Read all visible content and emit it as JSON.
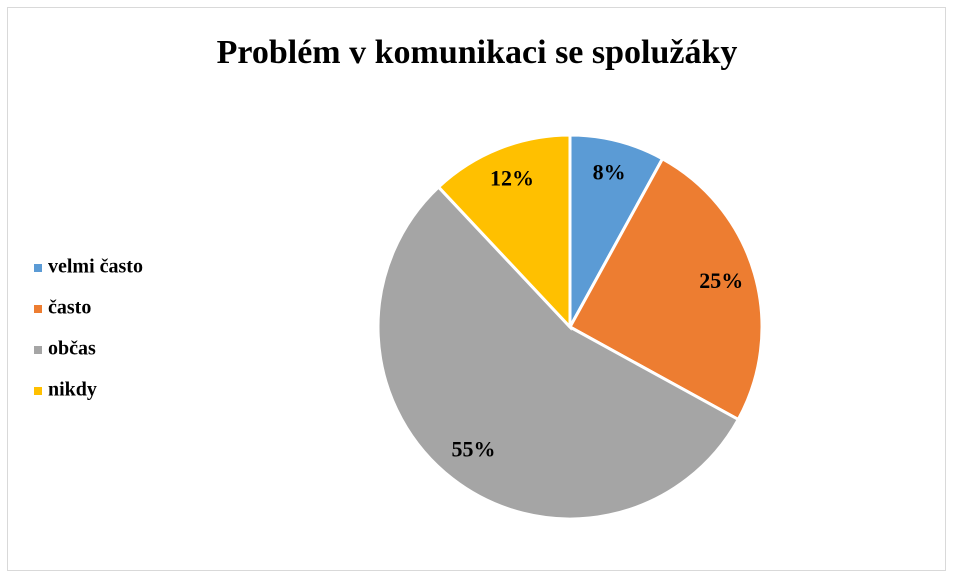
{
  "chart_data": {
    "type": "pie",
    "title": "Problém v komunikaci se spolužáky",
    "categories": [
      "velmi často",
      "často",
      "občas",
      "nikdy"
    ],
    "values": [
      8,
      25,
      55,
      12
    ],
    "value_labels": [
      "8%",
      "25%",
      "55%",
      "12%"
    ],
    "colors": [
      "#5b9bd5",
      "#ed7d31",
      "#a5a5a5",
      "#ffc000"
    ],
    "legend": "left"
  }
}
